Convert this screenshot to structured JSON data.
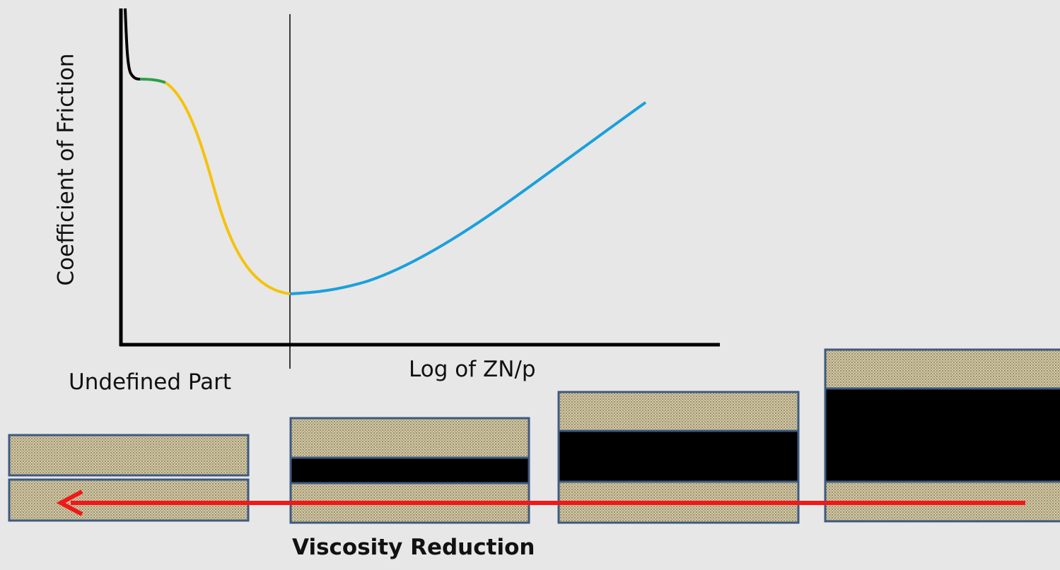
{
  "labels": {
    "y_axis": "Coefficient of Friction",
    "x_left": "Undefined Part",
    "x_right": "Log of ZN/p",
    "caption": "Viscosity Reduction"
  },
  "colors": {
    "background": "#e7e7e7",
    "axis": "#000000",
    "divider": "#000000",
    "curve_boundary": "#000000",
    "curve_mixed_start": "#2e9e4a",
    "curve_mixed": "#f5c20e",
    "curve_hydrodynamic": "#1aa0dc",
    "plate_fill": "#c4b896",
    "plate_border": "#3d5a80",
    "film": "#000000",
    "arrow": "#f01818"
  },
  "regimes": [
    {
      "name": "boundary",
      "color_key": "curve_boundary"
    },
    {
      "name": "mixed-start",
      "color_key": "curve_mixed_start"
    },
    {
      "name": "mixed",
      "color_key": "curve_mixed"
    },
    {
      "name": "hydrodynamic",
      "color_key": "curve_hydrodynamic"
    }
  ],
  "bearings": [
    {
      "id": "none",
      "film_level": 0
    },
    {
      "id": "thin",
      "film_level": 1
    },
    {
      "id": "medium",
      "film_level": 2
    },
    {
      "id": "thick",
      "film_level": 3
    }
  ],
  "arrow_icon": "arrow-left-icon"
}
